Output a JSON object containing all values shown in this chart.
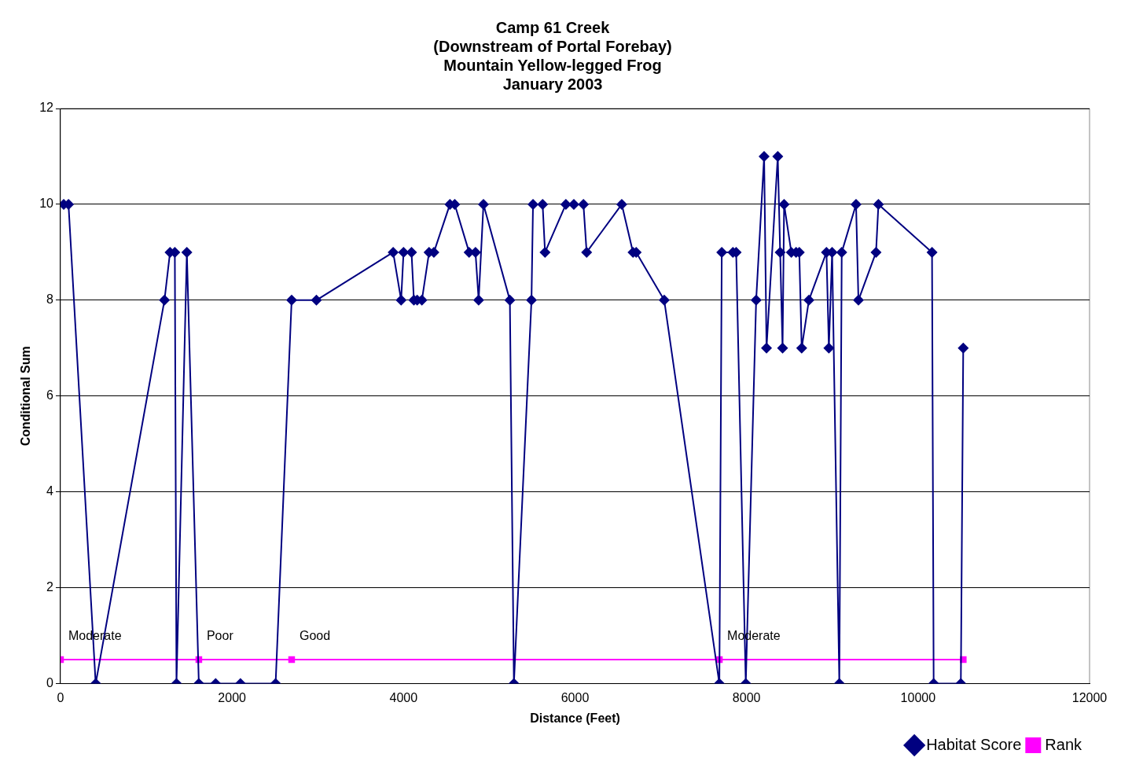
{
  "chart_data": {
    "type": "line",
    "title": "Camp 61 Creek\n(Downstream of Portal Forebay)\nMountain Yellow-legged Frog\nJanuary 2003",
    "xlabel": "Distance (Feet)",
    "ylabel": "Conditional Sum",
    "xlim": [
      0,
      12000
    ],
    "xticks": [
      0,
      2000,
      4000,
      6000,
      8000,
      10000,
      12000
    ],
    "ylim": [
      0,
      12
    ],
    "yticks": [
      0,
      2,
      4,
      6,
      8,
      10,
      12
    ],
    "grid": "y",
    "legend": "bottom right",
    "line_style": "solid",
    "series": [
      {
        "name": "Habitat Score",
        "color": "#000080",
        "marker": "diamond",
        "x": [
          37,
          93,
          410,
          1212,
          1277,
          1333,
          1352,
          1473,
          1613,
          1809,
          2098,
          2508,
          2695,
          2984,
          3879,
          3972,
          4000,
          4093,
          4121,
          4159,
          4214,
          4298,
          4354,
          4541,
          4597,
          4765,
          4839,
          4876,
          4932,
          5240,
          5287,
          5492,
          5510,
          5622,
          5650,
          5893,
          5986,
          6098,
          6135,
          6545,
          6676,
          6713,
          7040,
          7683,
          7711,
          7841,
          7879,
          7991,
          8112,
          8205,
          8233,
          8364,
          8392,
          8420,
          8438,
          8522,
          8578,
          8615,
          8643,
          8727,
          8932,
          8960,
          8998,
          9082,
          9110,
          9277,
          9305,
          9510,
          9538,
          10163,
          10182,
          10499,
          10527
        ],
        "values": [
          10,
          10,
          0,
          8,
          9,
          9,
          0,
          9,
          0,
          0,
          0,
          0,
          8,
          8,
          9,
          8,
          9,
          9,
          8,
          8,
          8,
          9,
          9,
          10,
          10,
          9,
          9,
          8,
          10,
          8,
          0,
          8,
          10,
          10,
          9,
          10,
          10,
          10,
          9,
          10,
          9,
          9,
          8,
          0,
          9,
          9,
          9,
          0,
          8,
          11,
          7,
          11,
          9,
          7,
          10,
          9,
          9,
          9,
          7,
          8,
          9,
          7,
          9,
          0,
          9,
          10,
          8,
          9,
          10,
          9,
          0,
          0,
          7
        ]
      },
      {
        "name": "Rank",
        "color": "#ff00ff",
        "marker": "square",
        "x": [
          0,
          1613,
          2695,
          7683,
          10527
        ],
        "values": [
          0.5,
          0.5,
          0.5,
          0.5,
          0.5
        ]
      }
    ],
    "annotations": [
      {
        "text": "Moderate",
        "x": 0,
        "y": 0.5
      },
      {
        "text": "Poor",
        "x": 1613,
        "y": 0.5
      },
      {
        "text": "Good",
        "x": 2695,
        "y": 0.5
      },
      {
        "text": "Moderate",
        "x": 7683,
        "y": 0.5
      }
    ]
  }
}
